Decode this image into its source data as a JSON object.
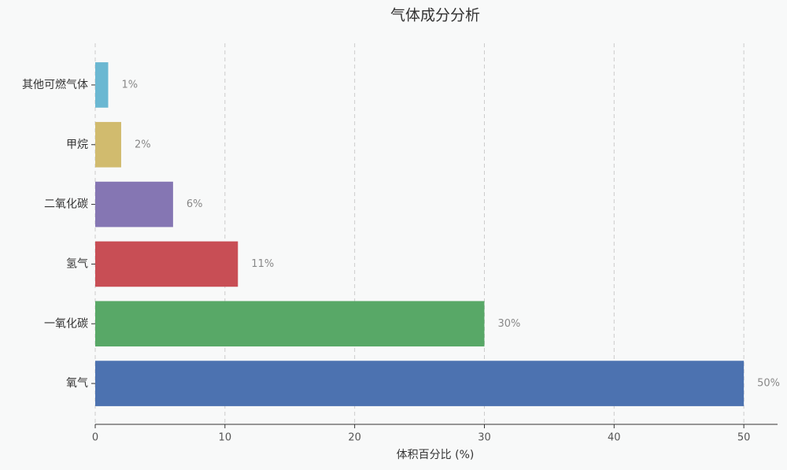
{
  "chart_data": {
    "type": "barh",
    "title": "气体成分分析",
    "xlabel": "体积百分比 (%)",
    "categories": [
      "其他可燃气体",
      "甲烷",
      "二氧化碳",
      "氢气",
      "一氧化碳",
      "氧气"
    ],
    "values": [
      1,
      2,
      6,
      11,
      30,
      50
    ],
    "value_labels": [
      "1%",
      "2%",
      "6%",
      "11%",
      "30%",
      "50%"
    ],
    "colors": [
      "#6bb8d2",
      "#d1bb6e",
      "#8576b3",
      "#c84e55",
      "#58a867",
      "#4c72b0"
    ],
    "xlim": [
      0,
      52.6
    ],
    "xticks": [
      0,
      10,
      20,
      30,
      40,
      50
    ],
    "grid": true
  }
}
